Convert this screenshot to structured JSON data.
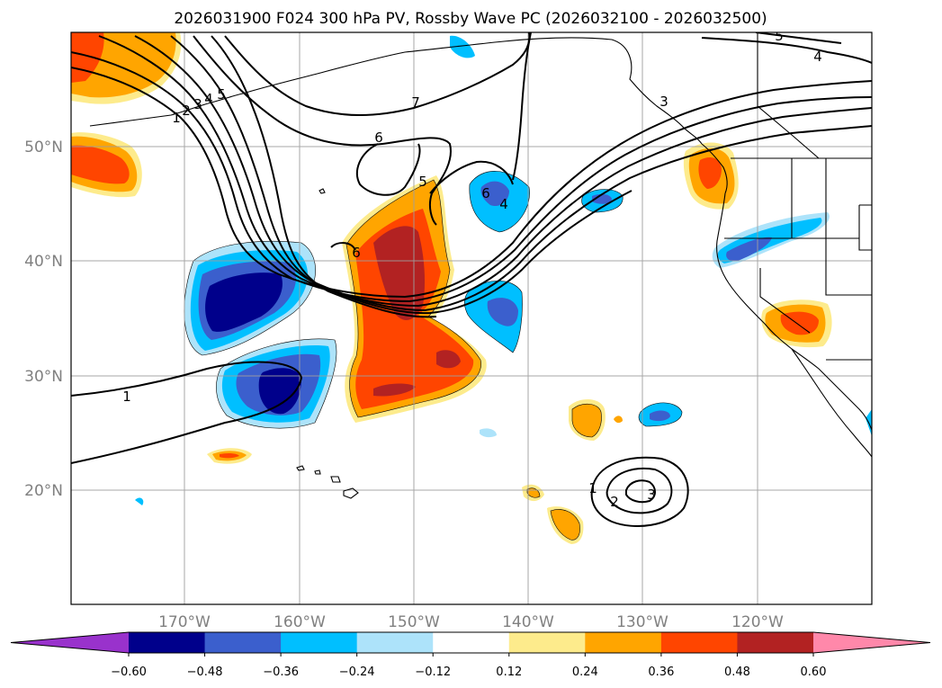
{
  "chart_data": {
    "type": "heatmap",
    "title": "2026031900 F024 300 hPa PV, Rossby Wave PC (2026032100 - 2026032500)",
    "map": {
      "projection": "plate-carree",
      "lon_range": [
        -180,
        -110
      ],
      "lat_range": [
        10,
        60
      ],
      "lon_ticks": [
        -170,
        -160,
        -150,
        -140,
        -130,
        -120
      ],
      "lat_ticks": [
        20,
        30,
        40,
        50
      ],
      "lon_tick_labels": [
        "170°W",
        "160°W",
        "150°W",
        "140°W",
        "130°W",
        "120°W"
      ],
      "lat_tick_labels": [
        "20°N",
        "30°N",
        "40°N",
        "50°N"
      ],
      "grid": true,
      "coastlines": true,
      "state_borders": true
    },
    "colorbar": {
      "orientation": "horizontal",
      "location": "bottom",
      "extend": "both",
      "levels": [
        -0.6,
        -0.48,
        -0.36,
        -0.24,
        -0.12,
        0.12,
        0.24,
        0.36,
        0.48,
        0.6
      ],
      "tick_labels": [
        "−0.60",
        "−0.48",
        "−0.36",
        "−0.24",
        "−0.12",
        "0.12",
        "0.24",
        "0.36",
        "0.48",
        "0.60"
      ],
      "colors": [
        "#9932cc",
        "#00008b",
        "#3b5fcd",
        "#00bfff",
        "#ade3fa",
        "#ffffff",
        "#fdeb8c",
        "#ffa500",
        "#ff4500",
        "#b22222",
        "#ff88aa"
      ]
    },
    "contour_labels": [
      "1",
      "1",
      "2",
      "3",
      "4",
      "5",
      "6",
      "7",
      "6",
      "5",
      "4",
      "3",
      "2",
      "1",
      "6",
      "5",
      "4",
      "3"
    ],
    "filled_regions": [
      {
        "lon": -163.5,
        "lat": 36.0,
        "value": -0.62
      },
      {
        "lon": -162.0,
        "lat": 29.0,
        "value": -0.55
      },
      {
        "lon": -142.0,
        "lat": 36.0,
        "value": -0.4
      },
      {
        "lon": -145.0,
        "lat": 44.5,
        "value": -0.4
      },
      {
        "lon": -131.0,
        "lat": 25.5,
        "value": -0.38
      },
      {
        "lon": -135.5,
        "lat": 45.0,
        "value": -0.38
      },
      {
        "lon": -123.0,
        "lat": 41.5,
        "value": -0.4
      },
      {
        "lon": -150.0,
        "lat": 38.5,
        "value": 0.52
      },
      {
        "lon": -148.5,
        "lat": 30.0,
        "value": 0.44
      },
      {
        "lon": -176.5,
        "lat": 48.5,
        "value": 0.4
      },
      {
        "lon": -175.0,
        "lat": 57.5,
        "value": 0.4
      },
      {
        "lon": -117.0,
        "lat": 35.0,
        "value": 0.4
      },
      {
        "lon": -124.0,
        "lat": 48.5,
        "value": 0.32
      },
      {
        "lon": -135.0,
        "lat": 25.0,
        "value": 0.3
      },
      {
        "lon": -138.0,
        "lat": 17.0,
        "value": 0.28
      },
      {
        "lon": -140.5,
        "lat": 20.0,
        "value": 0.22
      },
      {
        "lon": -164.0,
        "lat": 23.0,
        "value": 0.28
      },
      {
        "lon": -132.0,
        "lat": 25.8,
        "value": 0.2
      }
    ]
  }
}
